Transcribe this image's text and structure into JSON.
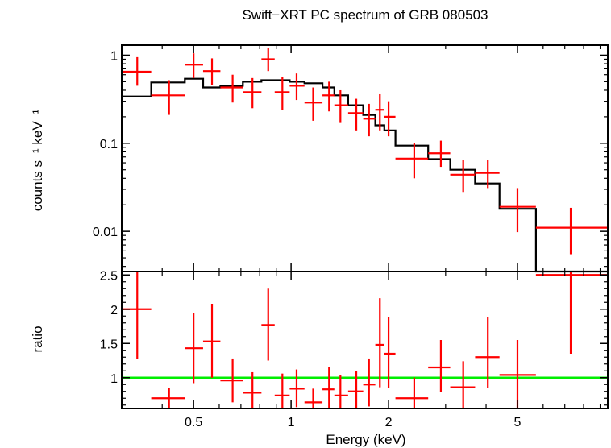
{
  "chart_data": {
    "type": "scatter",
    "title": "Swift−XRT PC spectrum of GRB 080503",
    "xlabel": "Energy (keV)",
    "x_scale": "log",
    "xlim": [
      0.3,
      9.5
    ],
    "x_ticks": [
      0.5,
      1,
      2,
      5
    ],
    "x_tick_labels": [
      "0.5",
      "1",
      "2",
      "5"
    ],
    "colors": {
      "data": "#ff0000",
      "model": "#000000",
      "unity": "#00ee00"
    },
    "panels": [
      {
        "name": "spectrum",
        "ylabel": "counts s⁻¹ keV⁻¹",
        "y_scale": "log",
        "ylim": [
          0.0035,
          1.3
        ],
        "y_ticks": [
          0.01,
          0.1,
          1
        ],
        "y_tick_labels": [
          "0.01",
          "0.1",
          "1"
        ],
        "data": [
          {
            "x": 0.335,
            "xlo": 0.3,
            "xhi": 0.37,
            "y": 0.65,
            "ylo": 0.45,
            "yhi": 0.95
          },
          {
            "x": 0.42,
            "xlo": 0.37,
            "xhi": 0.47,
            "y": 0.35,
            "ylo": 0.21,
            "yhi": 0.52
          },
          {
            "x": 0.5,
            "xlo": 0.47,
            "xhi": 0.535,
            "y": 0.78,
            "ylo": 0.55,
            "yhi": 1.05
          },
          {
            "x": 0.57,
            "xlo": 0.535,
            "xhi": 0.605,
            "y": 0.66,
            "ylo": 0.46,
            "yhi": 0.92
          },
          {
            "x": 0.66,
            "xlo": 0.605,
            "xhi": 0.71,
            "y": 0.43,
            "ylo": 0.29,
            "yhi": 0.6
          },
          {
            "x": 0.76,
            "xlo": 0.71,
            "xhi": 0.81,
            "y": 0.38,
            "ylo": 0.25,
            "yhi": 0.55
          },
          {
            "x": 0.85,
            "xlo": 0.81,
            "xhi": 0.89,
            "y": 0.9,
            "ylo": 0.66,
            "yhi": 1.2
          },
          {
            "x": 0.94,
            "xlo": 0.89,
            "xhi": 0.99,
            "y": 0.38,
            "ylo": 0.24,
            "yhi": 0.56
          },
          {
            "x": 1.04,
            "xlo": 0.99,
            "xhi": 1.1,
            "y": 0.45,
            "ylo": 0.31,
            "yhi": 0.62
          },
          {
            "x": 1.17,
            "xlo": 1.1,
            "xhi": 1.25,
            "y": 0.29,
            "ylo": 0.18,
            "yhi": 0.43
          },
          {
            "x": 1.31,
            "xlo": 1.25,
            "xhi": 1.36,
            "y": 0.35,
            "ylo": 0.23,
            "yhi": 0.5
          },
          {
            "x": 1.42,
            "xlo": 1.36,
            "xhi": 1.5,
            "y": 0.27,
            "ylo": 0.17,
            "yhi": 0.4
          },
          {
            "x": 1.59,
            "xlo": 1.5,
            "xhi": 1.67,
            "y": 0.22,
            "ylo": 0.14,
            "yhi": 0.32
          },
          {
            "x": 1.74,
            "xlo": 1.67,
            "xhi": 1.82,
            "y": 0.19,
            "ylo": 0.12,
            "yhi": 0.28
          },
          {
            "x": 1.88,
            "xlo": 1.82,
            "xhi": 1.94,
            "y": 0.24,
            "ylo": 0.14,
            "yhi": 0.36
          },
          {
            "x": 2.0,
            "xlo": 1.94,
            "xhi": 2.1,
            "y": 0.2,
            "ylo": 0.12,
            "yhi": 0.3
          },
          {
            "x": 2.4,
            "xlo": 2.1,
            "xhi": 2.65,
            "y": 0.067,
            "ylo": 0.04,
            "yhi": 0.1
          },
          {
            "x": 2.9,
            "xlo": 2.65,
            "xhi": 3.1,
            "y": 0.077,
            "ylo": 0.054,
            "yhi": 0.107
          },
          {
            "x": 3.4,
            "xlo": 3.1,
            "xhi": 3.7,
            "y": 0.044,
            "ylo": 0.028,
            "yhi": 0.064
          },
          {
            "x": 4.05,
            "xlo": 3.7,
            "xhi": 4.4,
            "y": 0.046,
            "ylo": 0.031,
            "yhi": 0.065
          },
          {
            "x": 5.0,
            "xlo": 4.4,
            "xhi": 5.7,
            "y": 0.019,
            "ylo": 0.0098,
            "yhi": 0.031
          },
          {
            "x": 7.3,
            "xlo": 5.7,
            "xhi": 9.5,
            "y": 0.011,
            "ylo": 0.0055,
            "yhi": 0.0185
          }
        ],
        "model_steps": [
          {
            "xlo": 0.3,
            "xhi": 0.37,
            "y": 0.34
          },
          {
            "xlo": 0.37,
            "xhi": 0.47,
            "y": 0.49
          },
          {
            "xlo": 0.47,
            "xhi": 0.535,
            "y": 0.54
          },
          {
            "xlo": 0.535,
            "xhi": 0.605,
            "y": 0.43
          },
          {
            "xlo": 0.605,
            "xhi": 0.71,
            "y": 0.45
          },
          {
            "xlo": 0.71,
            "xhi": 0.81,
            "y": 0.5
          },
          {
            "xlo": 0.81,
            "xhi": 0.89,
            "y": 0.52
          },
          {
            "xlo": 0.89,
            "xhi": 0.99,
            "y": 0.52
          },
          {
            "xlo": 0.99,
            "xhi": 1.1,
            "y": 0.5
          },
          {
            "xlo": 1.1,
            "xhi": 1.25,
            "y": 0.48
          },
          {
            "xlo": 1.25,
            "xhi": 1.36,
            "y": 0.43
          },
          {
            "xlo": 1.36,
            "xhi": 1.5,
            "y": 0.35
          },
          {
            "xlo": 1.5,
            "xhi": 1.67,
            "y": 0.27
          },
          {
            "xlo": 1.67,
            "xhi": 1.82,
            "y": 0.21
          },
          {
            "xlo": 1.82,
            "xhi": 1.94,
            "y": 0.16
          },
          {
            "xlo": 1.94,
            "xhi": 2.1,
            "y": 0.14
          },
          {
            "xlo": 2.1,
            "xhi": 2.65,
            "y": 0.094
          },
          {
            "xlo": 2.65,
            "xhi": 3.1,
            "y": 0.066
          },
          {
            "xlo": 3.1,
            "xhi": 3.7,
            "y": 0.05
          },
          {
            "xlo": 3.7,
            "xhi": 4.4,
            "y": 0.035
          },
          {
            "xlo": 4.4,
            "xhi": 5.7,
            "y": 0.018
          },
          {
            "xlo": 5.7,
            "xhi": 9.5,
            "y": 0.0035
          }
        ]
      },
      {
        "name": "ratio",
        "ylabel": "ratio",
        "y_scale": "linear",
        "ylim": [
          0.55,
          2.55
        ],
        "y_ticks": [
          1,
          1.5,
          2,
          2.5
        ],
        "y_tick_labels": [
          "1",
          "1.5",
          "2",
          "2.5"
        ],
        "unity_line": 1,
        "data": [
          {
            "x": 0.335,
            "xlo": 0.3,
            "xhi": 0.37,
            "y": 2.0,
            "ylo": 1.28,
            "yhi": 2.55
          },
          {
            "x": 0.42,
            "xlo": 0.37,
            "xhi": 0.47,
            "y": 0.7,
            "ylo": 0.55,
            "yhi": 0.85
          },
          {
            "x": 0.5,
            "xlo": 0.47,
            "xhi": 0.535,
            "y": 1.43,
            "ylo": 0.92,
            "yhi": 1.95
          },
          {
            "x": 0.57,
            "xlo": 0.535,
            "xhi": 0.605,
            "y": 1.53,
            "ylo": 1.0,
            "yhi": 2.08
          },
          {
            "x": 0.66,
            "xlo": 0.605,
            "xhi": 0.71,
            "y": 0.96,
            "ylo": 0.64,
            "yhi": 1.28
          },
          {
            "x": 0.76,
            "xlo": 0.71,
            "xhi": 0.81,
            "y": 0.78,
            "ylo": 0.55,
            "yhi": 1.08
          },
          {
            "x": 0.85,
            "xlo": 0.81,
            "xhi": 0.89,
            "y": 1.77,
            "ylo": 1.25,
            "yhi": 2.3
          },
          {
            "x": 0.94,
            "xlo": 0.89,
            "xhi": 0.99,
            "y": 0.74,
            "ylo": 0.55,
            "yhi": 1.06
          },
          {
            "x": 1.04,
            "xlo": 0.99,
            "xhi": 1.1,
            "y": 0.84,
            "ylo": 0.57,
            "yhi": 1.12
          },
          {
            "x": 1.17,
            "xlo": 1.1,
            "xhi": 1.25,
            "y": 0.64,
            "ylo": 0.55,
            "yhi": 0.84
          },
          {
            "x": 1.31,
            "xlo": 1.25,
            "xhi": 1.36,
            "y": 0.83,
            "ylo": 0.55,
            "yhi": 1.15
          },
          {
            "x": 1.42,
            "xlo": 1.36,
            "xhi": 1.5,
            "y": 0.74,
            "ylo": 0.55,
            "yhi": 1.04
          },
          {
            "x": 1.59,
            "xlo": 1.5,
            "xhi": 1.67,
            "y": 0.8,
            "ylo": 0.55,
            "yhi": 1.1
          },
          {
            "x": 1.74,
            "xlo": 1.67,
            "xhi": 1.82,
            "y": 0.9,
            "ylo": 0.58,
            "yhi": 1.28
          },
          {
            "x": 1.88,
            "xlo": 1.82,
            "xhi": 1.94,
            "y": 1.48,
            "ylo": 0.86,
            "yhi": 2.16
          },
          {
            "x": 2.0,
            "xlo": 1.94,
            "xhi": 2.1,
            "y": 1.35,
            "ylo": 0.85,
            "yhi": 1.88
          },
          {
            "x": 2.4,
            "xlo": 2.1,
            "xhi": 2.65,
            "y": 0.7,
            "ylo": 0.55,
            "yhi": 1.0
          },
          {
            "x": 2.9,
            "xlo": 2.65,
            "xhi": 3.1,
            "y": 1.15,
            "ylo": 0.79,
            "yhi": 1.55
          },
          {
            "x": 3.4,
            "xlo": 3.1,
            "xhi": 3.7,
            "y": 0.86,
            "ylo": 0.55,
            "yhi": 1.24
          },
          {
            "x": 4.05,
            "xlo": 3.7,
            "xhi": 4.4,
            "y": 1.3,
            "ylo": 0.85,
            "yhi": 1.88
          },
          {
            "x": 5.0,
            "xlo": 4.4,
            "xhi": 5.7,
            "y": 1.04,
            "ylo": 0.55,
            "yhi": 1.55
          },
          {
            "x": 7.3,
            "xlo": 5.7,
            "xhi": 9.5,
            "y": 2.5,
            "ylo": 1.35,
            "yhi": 2.55
          }
        ]
      }
    ]
  }
}
